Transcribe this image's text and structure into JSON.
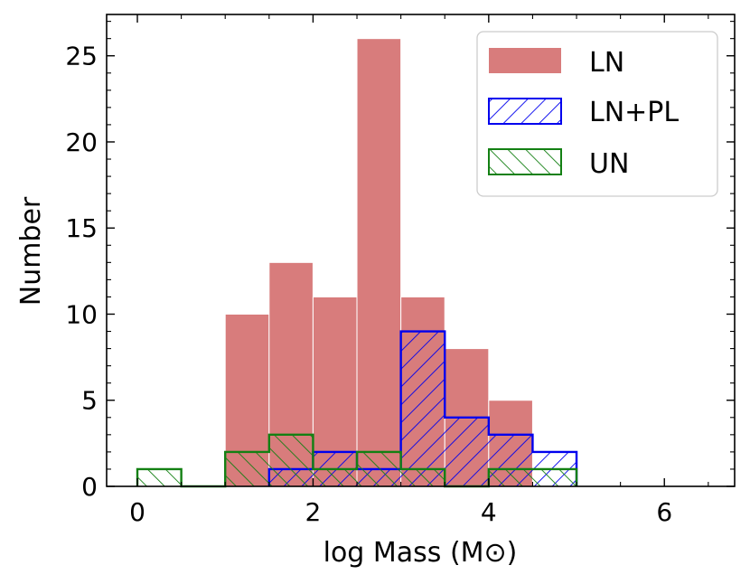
{
  "chart_data": {
    "type": "histogram",
    "xlabel": "log Mass (M⊙)",
    "ylabel": "Number",
    "xlim": [
      -0.35,
      6.8
    ],
    "ylim": [
      0,
      27.4
    ],
    "bin_width": 0.5,
    "xticks": [
      0,
      2,
      4,
      6
    ],
    "xtick_labels": [
      "0",
      "2",
      "4",
      "6"
    ],
    "yticks": [
      0,
      5,
      10,
      15,
      20,
      25
    ],
    "ytick_labels": [
      "0",
      "5",
      "10",
      "15",
      "20",
      "25"
    ],
    "legend_position": "top-right",
    "series": [
      {
        "name": "LN",
        "style": "filled",
        "color": "#d87c7c",
        "bins": [
          {
            "x0": 1.0,
            "x1": 1.5,
            "count": 10
          },
          {
            "x0": 1.5,
            "x1": 2.0,
            "count": 13
          },
          {
            "x0": 2.0,
            "x1": 2.5,
            "count": 11
          },
          {
            "x0": 2.5,
            "x1": 3.0,
            "count": 26
          },
          {
            "x0": 3.0,
            "x1": 3.5,
            "count": 11
          },
          {
            "x0": 3.5,
            "x1": 4.0,
            "count": 8
          },
          {
            "x0": 4.0,
            "x1": 4.5,
            "count": 5
          }
        ]
      },
      {
        "name": "LN+PL",
        "style": "hatched-backslash",
        "color": "#0000ee",
        "bins": [
          {
            "x0": 1.5,
            "x1": 2.0,
            "count": 1
          },
          {
            "x0": 2.0,
            "x1": 2.5,
            "count": 2
          },
          {
            "x0": 2.5,
            "x1": 3.0,
            "count": 1
          },
          {
            "x0": 3.0,
            "x1": 3.5,
            "count": 9
          },
          {
            "x0": 3.5,
            "x1": 4.0,
            "count": 4
          },
          {
            "x0": 4.0,
            "x1": 4.5,
            "count": 3
          },
          {
            "x0": 4.5,
            "x1": 5.0,
            "count": 2
          }
        ]
      },
      {
        "name": "UN",
        "style": "hatched-slash",
        "color": "#138013",
        "bins": [
          {
            "x0": 0.0,
            "x1": 0.5,
            "count": 1
          },
          {
            "x0": 1.0,
            "x1": 1.5,
            "count": 2
          },
          {
            "x0": 1.5,
            "x1": 2.0,
            "count": 3
          },
          {
            "x0": 2.0,
            "x1": 2.5,
            "count": 1
          },
          {
            "x0": 2.5,
            "x1": 3.0,
            "count": 2
          },
          {
            "x0": 3.0,
            "x1": 3.5,
            "count": 1
          },
          {
            "x0": 4.0,
            "x1": 4.5,
            "count": 1
          },
          {
            "x0": 4.5,
            "x1": 5.0,
            "count": 1
          }
        ]
      }
    ]
  }
}
